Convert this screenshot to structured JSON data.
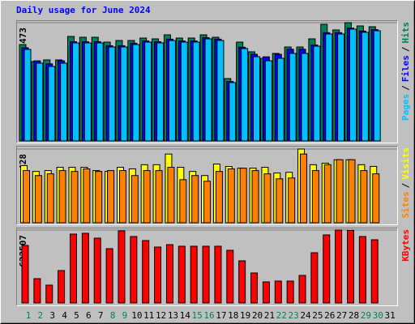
{
  "chart_data": [
    {
      "type": "bar",
      "title": "Daily usage for June 2024",
      "title_color": "#0000ff",
      "legend_separator": "/",
      "series": [
        {
          "name": "Hits",
          "color": "#00805c",
          "values": [
            19130,
            15760,
            16080,
            16080,
            20740,
            20580,
            20580,
            19620,
            19940,
            19940,
            20420,
            20260,
            21060,
            20420,
            20420,
            21060,
            20580,
            12380,
            19620,
            17690,
            16400,
            17370,
            18650,
            18650,
            20260,
            23150,
            22030,
            23473,
            22830,
            22670,
            null
          ]
        },
        {
          "name": "Files",
          "color": "#0000ff",
          "values": [
            18500,
            15900,
            15300,
            15900,
            19700,
            19700,
            19700,
            18900,
            18900,
            19400,
            19850,
            19700,
            20200,
            19850,
            19850,
            20500,
            20200,
            11800,
            18600,
            17200,
            16700,
            17200,
            18200,
            18200,
            19050,
            21500,
            21500,
            22400,
            21800,
            22100,
            null
          ]
        },
        {
          "name": "Pages",
          "color": "#00c0ff",
          "values": [
            18170,
            15440,
            14790,
            15440,
            19460,
            19460,
            19460,
            18650,
            18650,
            19140,
            19620,
            19460,
            19940,
            19620,
            19620,
            20260,
            19940,
            11580,
            18330,
            16720,
            15920,
            16400,
            17370,
            17370,
            18810,
            21230,
            21230,
            22190,
            21550,
            21870,
            null
          ]
        }
      ],
      "ylim": [
        0,
        23473
      ],
      "yticks": [
        23473
      ]
    },
    {
      "type": "bar",
      "legend_separator": "/",
      "series": [
        {
          "name": "Visits",
          "color": "#ffff00",
          "values": [
            332,
            298,
            303,
            322,
            322,
            322,
            303,
            298,
            322,
            313,
            337,
            337,
            399,
            322,
            298,
            274,
            341,
            327,
            317,
            317,
            322,
            289,
            293,
            428,
            337,
            346,
            366,
            366,
            337,
            327,
            null
          ]
        },
        {
          "name": "Sites",
          "color": "#ff8000",
          "values": [
            303,
            274,
            284,
            303,
            298,
            313,
            298,
            303,
            303,
            274,
            303,
            303,
            322,
            250,
            274,
            241,
            298,
            313,
            317,
            303,
            284,
            255,
            260,
            399,
            303,
            337,
            366,
            366,
            303,
            284,
            null
          ]
        }
      ],
      "ylim": [
        0,
        428
      ],
      "yticks": [
        428
      ]
    },
    {
      "type": "bar",
      "series": [
        {
          "name": "KBytes",
          "color": "#ff0000",
          "values": [
            491900,
            207800,
            152400,
            277100,
            588900,
            595800,
            554200,
            464200,
            616600,
            568100,
            533500,
            478000,
            498800,
            485000,
            485000,
            485000,
            485000,
            450300,
            360300,
            256300,
            180100,
            187100,
            187100,
            235600,
            429500,
            582000,
            623507,
            621000,
            568100,
            540400,
            null
          ]
        }
      ],
      "ylim": [
        0,
        623507
      ],
      "yticks": [
        623507
      ],
      "categories": [
        "1",
        "2",
        "3",
        "4",
        "5",
        "6",
        "7",
        "8",
        "9",
        "10",
        "11",
        "12",
        "13",
        "14",
        "15",
        "16",
        "17",
        "18",
        "19",
        "20",
        "21",
        "22",
        "23",
        "24",
        "25",
        "26",
        "27",
        "28",
        "29",
        "30",
        "31"
      ],
      "category_colors": [
        "#00805c",
        "#00805c",
        "#000000",
        "#000000",
        "#000000",
        "#000000",
        "#000000",
        "#00805c",
        "#00805c",
        "#000000",
        "#000000",
        "#000000",
        "#000000",
        "#000000",
        "#00805c",
        "#00805c",
        "#000000",
        "#000000",
        "#000000",
        "#000000",
        "#000000",
        "#00805c",
        "#00805c",
        "#000000",
        "#000000",
        "#000000",
        "#000000",
        "#000000",
        "#00805c",
        "#00805c",
        "#000000"
      ]
    }
  ]
}
